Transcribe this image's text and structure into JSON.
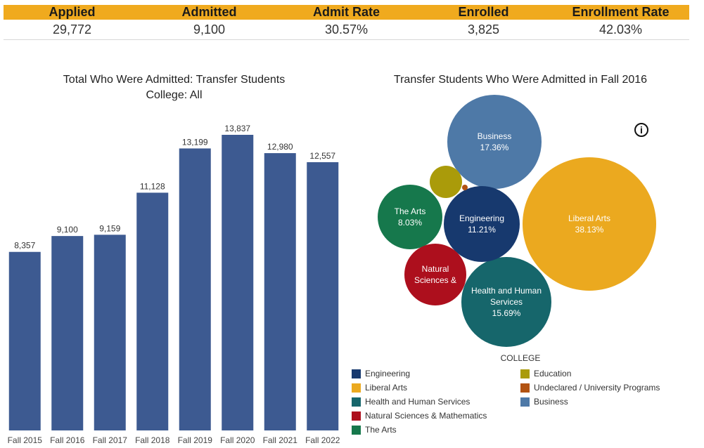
{
  "kpis": [
    {
      "label": "Applied",
      "value": "29,772"
    },
    {
      "label": "Admitted",
      "value": "9,100"
    },
    {
      "label": "Admit Rate",
      "value": "30.57%"
    },
    {
      "label": "Enrolled",
      "value": "3,825"
    },
    {
      "label": "Enrollment Rate",
      "value": "42.03%"
    }
  ],
  "bar_panel": {
    "title_line1": "Total Who Were Admitted: Transfer Students",
    "title_line2": "College: All"
  },
  "bubble_panel": {
    "title": "Transfer Students Who Were Admitted  in Fall 2016",
    "info_icon": "i"
  },
  "legend": {
    "title": "COLLEGE",
    "items_left": [
      {
        "label": "Engineering",
        "color": "#17396e"
      },
      {
        "label": "Liberal Arts",
        "color": "#eba91f"
      },
      {
        "label": "Health and Human Services",
        "color": "#16666b"
      },
      {
        "label": "Natural Sciences & Mathematics",
        "color": "#ad0f1d"
      },
      {
        "label": "The Arts",
        "color": "#16784c"
      }
    ],
    "items_right": [
      {
        "label": "Education",
        "color": "#aa9b0a"
      },
      {
        "label": "Undeclared / University Programs",
        "color": "#b25312"
      },
      {
        "label": "Business",
        "color": "#4e79a7"
      }
    ]
  },
  "chart_data": [
    {
      "type": "bar",
      "title": "Total Who Were Admitted: Transfer Students",
      "subtitle": "College: All",
      "categories": [
        "Fall 2015",
        "Fall 2016",
        "Fall 2017",
        "Fall 2018",
        "Fall 2019",
        "Fall 2020",
        "Fall 2021",
        "Fall 2022"
      ],
      "values": [
        8357,
        9100,
        9159,
        11128,
        13199,
        13837,
        12980,
        12557
      ],
      "value_labels": [
        "8,357",
        "9,100",
        "9,159",
        "11,128",
        "13,199",
        "13,837",
        "12,980",
        "12,557"
      ],
      "bar_color": "#3d5a91",
      "grid": false
    },
    {
      "type": "bubble",
      "title": "Transfer Students Who Were Admitted  in Fall 2016",
      "legend_title": "COLLEGE",
      "bubbles": [
        {
          "category": "Liberal Arts",
          "label_lines": [
            "Liberal Arts",
            "38.13%"
          ],
          "value": 38.13,
          "color": "#eba91f"
        },
        {
          "category": "Business",
          "label_lines": [
            "Business",
            "17.36%"
          ],
          "value": 17.36,
          "color": "#4e79a7"
        },
        {
          "category": "Health and Human Services",
          "label_lines": [
            "Health and Human",
            "Services",
            "15.69%"
          ],
          "value": 15.69,
          "color": "#16666b"
        },
        {
          "category": "Engineering",
          "label_lines": [
            "Engineering",
            "11.21%"
          ],
          "value": 11.21,
          "color": "#17396e"
        },
        {
          "category": "The Arts",
          "label_lines": [
            "The Arts",
            "8.03%"
          ],
          "value": 8.03,
          "color": "#16784c"
        },
        {
          "category": "Natural Sciences & Mathematics",
          "label_lines": [
            "Natural",
            "Sciences &"
          ],
          "value": 7.4,
          "color": "#ad0f1d"
        },
        {
          "category": "Education",
          "label_lines": [],
          "value": 2.0,
          "color": "#aa9b0a"
        },
        {
          "category": "Undeclared / University Programs",
          "label_lines": [],
          "value": 0.2,
          "color": "#b25312"
        }
      ]
    }
  ]
}
